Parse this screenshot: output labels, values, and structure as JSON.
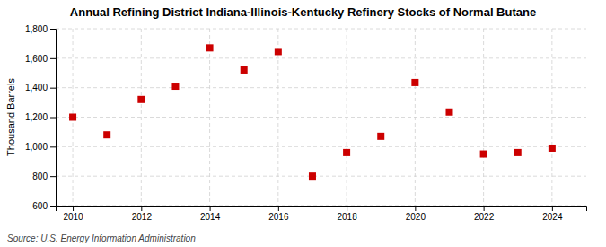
{
  "chart_data": {
    "type": "scatter",
    "title": "Annual Refining District Indiana-Illinois-Kentucky Refinery Stocks of Normal Butane",
    "ylabel": "Thousand Barrels",
    "annotations": [
      "Source: U.S. Energy Information Administration"
    ],
    "x": [
      2010,
      2011,
      2012,
      2013,
      2014,
      2015,
      2016,
      2017,
      2018,
      2019,
      2020,
      2021,
      2022,
      2023,
      2024
    ],
    "values": [
      1200,
      1080,
      1320,
      1410,
      1670,
      1520,
      1645,
      800,
      960,
      1070,
      1435,
      1235,
      950,
      960,
      990
    ],
    "color": "#cc0000",
    "marker": "square",
    "xlim": [
      2009.5,
      2025.0
    ],
    "ylim": [
      600,
      1800
    ],
    "xticks": [
      2010,
      2012,
      2014,
      2016,
      2018,
      2020,
      2022,
      2024
    ],
    "yticks": [
      600,
      800,
      {
        "value": 1000,
        "label": "1,000"
      },
      {
        "value": 1200,
        "label": "1,200"
      },
      {
        "value": 1400,
        "label": "1,400"
      },
      {
        "value": 1600,
        "label": "1,600"
      },
      {
        "value": 1800,
        "label": "1,800"
      }
    ],
    "grid": true
  }
}
